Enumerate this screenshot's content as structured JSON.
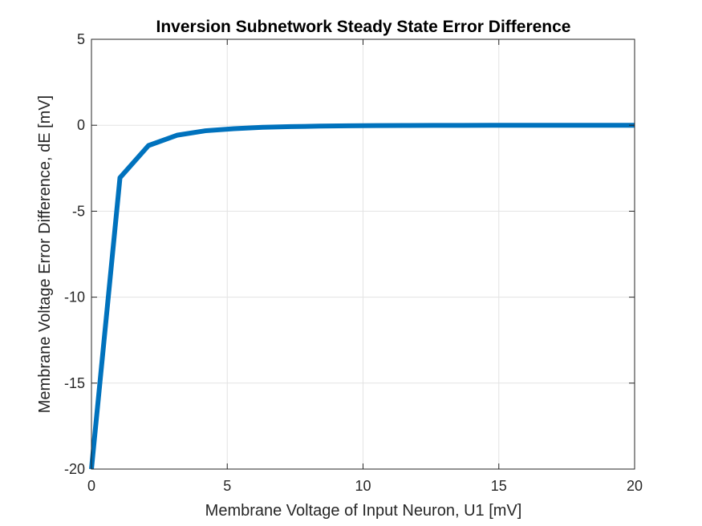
{
  "chart_data": {
    "type": "line",
    "title": "Inversion Subnetwork Steady State Error Difference",
    "xlabel": "Membrane Voltage of Input Neuron, U1 [mV]",
    "ylabel": "Membrane Voltage Error Difference, dE [mV]",
    "xlim": [
      0,
      20
    ],
    "ylim": [
      -20,
      5
    ],
    "xticks": [
      0,
      5,
      10,
      15,
      20
    ],
    "yticks": [
      -20,
      -15,
      -10,
      -5,
      0,
      5
    ],
    "xtick_labels": [
      "0",
      "5",
      "10",
      "15",
      "20"
    ],
    "ytick_labels": [
      "-20",
      "-15",
      "-10",
      "-5",
      "0",
      "5"
    ],
    "grid": true,
    "series": [
      {
        "color": "#0072BD",
        "x": [
          0,
          1.05,
          2.1,
          3.15,
          4.2,
          5.25,
          6.3,
          7.35,
          8.4,
          9.45,
          10.5,
          11.55,
          12.6,
          13.65,
          14.7,
          15.75,
          16.8,
          17.85,
          18.9,
          20
        ],
        "y": [
          -20,
          -3.05,
          -1.18,
          -0.58,
          -0.32,
          -0.2,
          -0.12,
          -0.08,
          -0.05,
          -0.03,
          -0.02,
          -0.015,
          -0.01,
          -0.006,
          -0.004,
          -0.003,
          -0.002,
          -0.001,
          -0.0005,
          0
        ]
      }
    ]
  }
}
